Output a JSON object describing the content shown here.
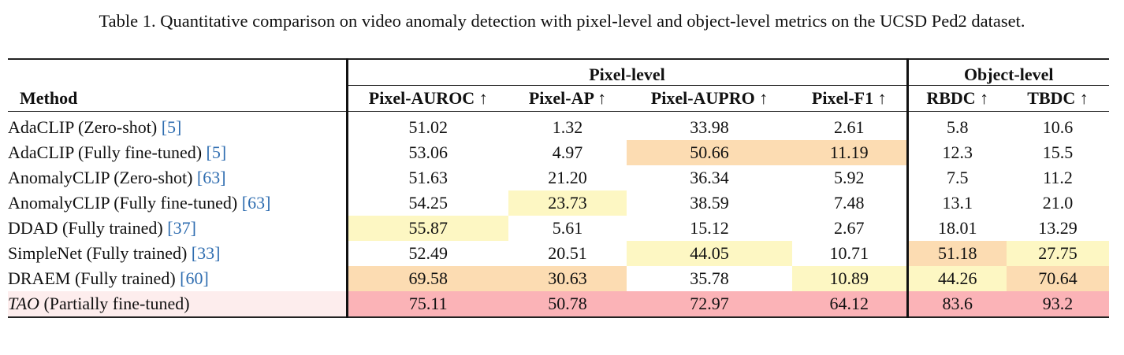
{
  "caption": "Table 1. Quantitative comparison on video anomaly detection with pixel-level and object-level metrics on the UCSD Ped2 dataset.",
  "groups": {
    "pixel": "Pixel-level",
    "object": "Object-level"
  },
  "headers": {
    "method": "Method",
    "pixel_auroc": "Pixel-AUROC ↑",
    "pixel_ap": "Pixel-AP ↑",
    "pixel_aupro": "Pixel-AUPRO ↑",
    "pixel_f1": "Pixel-F1 ↑",
    "rbdc": "RBDC ↑",
    "tbdc": "TBDC ↑"
  },
  "highlight_colors": {
    "best": "#fbb3b7",
    "second": "#fcdcb2",
    "third": "#fdf7c3",
    "ours_row": "#fdeded"
  },
  "rows": [
    {
      "name": "AdaCLIP (Zero-shot)",
      "ref": "[5]",
      "auroc": "51.02",
      "ap": "1.32",
      "aupro": "33.98",
      "f1": "2.61",
      "rbdc": "5.8",
      "tbdc": "10.6"
    },
    {
      "name": "AdaCLIP (Fully fine-tuned)",
      "ref": "[5]",
      "auroc": "53.06",
      "ap": "4.97",
      "aupro": "50.66",
      "f1": "11.19",
      "rbdc": "12.3",
      "tbdc": "15.5"
    },
    {
      "name": "AnomalyCLIP (Zero-shot)",
      "ref": "[63]",
      "auroc": "51.63",
      "ap": "21.20",
      "aupro": "36.34",
      "f1": "5.92",
      "rbdc": "7.5",
      "tbdc": "11.2"
    },
    {
      "name": "AnomalyCLIP (Fully fine-tuned)",
      "ref": "[63]",
      "auroc": "54.25",
      "ap": "23.73",
      "aupro": "38.59",
      "f1": "7.48",
      "rbdc": "13.1",
      "tbdc": "21.0"
    },
    {
      "name": "DDAD (Fully trained)",
      "ref": "[37]",
      "auroc": "55.87",
      "ap": "5.61",
      "aupro": "15.12",
      "f1": "2.67",
      "rbdc": "18.01",
      "tbdc": "13.29"
    },
    {
      "name": "SimpleNet (Fully trained)",
      "ref": "[33]",
      "auroc": "52.49",
      "ap": "20.51",
      "aupro": "44.05",
      "f1": "10.71",
      "rbdc": "51.18",
      "tbdc": "27.75"
    },
    {
      "name": "DRAEM (Fully trained)",
      "ref": "[60]",
      "auroc": "69.58",
      "ap": "30.63",
      "aupro": "35.78",
      "f1": "10.89",
      "rbdc": "44.26",
      "tbdc": "70.64"
    },
    {
      "name_italic": "TAO",
      "name_rest": " (Partially fine-tuned)",
      "auroc": "75.11",
      "ap": "50.78",
      "aupro": "72.97",
      "f1": "64.12",
      "rbdc": "83.6",
      "tbdc": "93.2"
    }
  ]
}
